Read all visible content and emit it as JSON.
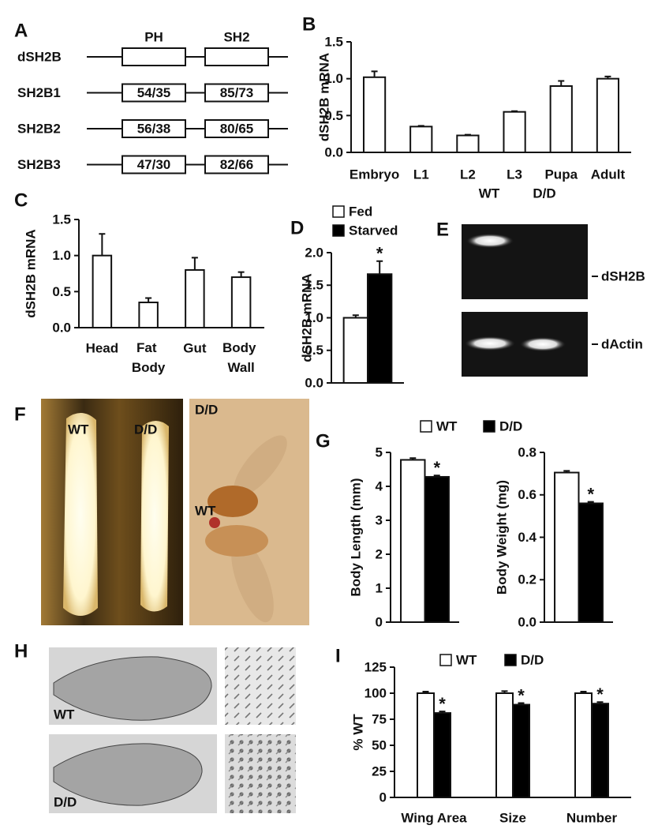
{
  "diagram": {
    "panel": "A",
    "domains": [
      "PH",
      "SH2"
    ],
    "rows": [
      {
        "name": "dSH2B"
      },
      {
        "name": "SH2B1",
        "identities": [
          "54/35",
          "85/73"
        ]
      },
      {
        "name": "SH2B2",
        "identities": [
          "56/38",
          "80/65"
        ]
      },
      {
        "name": "SH2B3",
        "identities": [
          "47/30",
          "82/66"
        ]
      }
    ]
  },
  "chart_data": [
    {
      "type": "bar",
      "panel": "B",
      "ylabel": "dSH2B mRNA",
      "categories": [
        "Embryo",
        "L1",
        "L2",
        "L3",
        "Pupa",
        "Adult"
      ],
      "series": [
        {
          "color": "#ffffff",
          "values": [
            1.02,
            0.35,
            0.23,
            0.55,
            0.9,
            1.0
          ],
          "errors": [
            0.08,
            0.01,
            0.01,
            0.01,
            0.07,
            0.03
          ]
        }
      ],
      "ylim": [
        0,
        1.5
      ],
      "yticks": [
        {
          "value": 0,
          "label": "0.0"
        },
        0.5,
        {
          "value": 1,
          "label": "1.0"
        },
        1.5
      ]
    },
    {
      "type": "bar",
      "panel": "C",
      "ylabel": "dSH2B mRNA",
      "categories": [
        "Head",
        "Fat Body",
        "Gut",
        "Body Wall"
      ],
      "wrap_labels": true,
      "series": [
        {
          "color": "#ffffff",
          "values": [
            1.0,
            0.35,
            0.8,
            0.7
          ],
          "errors": [
            0.3,
            0.06,
            0.17,
            0.07
          ]
        }
      ],
      "ylim": [
        0,
        1.5
      ],
      "yticks": [
        {
          "value": 0,
          "label": "0.0"
        },
        0.5,
        {
          "value": 1,
          "label": "1.0"
        },
        1.5
      ]
    },
    {
      "type": "bar",
      "panel": "D",
      "ylabel": "dSH2B mRNA",
      "series": [
        {
          "name": "Fed",
          "color": "#ffffff",
          "values": [
            1.0
          ],
          "errors": [
            0.04
          ]
        },
        {
          "name": "Starved",
          "color": "#000000",
          "values": [
            1.67
          ],
          "errors": [
            0.2
          ],
          "annotations": [
            "*"
          ]
        }
      ],
      "ylim": [
        0,
        2
      ],
      "yticks": [
        {
          "value": 0,
          "label": "0.0"
        },
        0.5,
        {
          "value": 1,
          "label": "1.0"
        },
        1.5,
        {
          "value": 2,
          "label": "2.0"
        }
      ]
    },
    {
      "type": "bar",
      "panel": "G",
      "series": [
        {
          "name": "WT",
          "color": "#ffffff",
          "values": [
            4.78,
            0.705
          ],
          "errors": [
            0.05,
            0.008
          ]
        },
        {
          "name": "D/D",
          "color": "#000000",
          "values": [
            4.28,
            0.56
          ],
          "errors": [
            0.04,
            0.007
          ],
          "annotations": [
            "*",
            "*"
          ]
        }
      ],
      "subplots": [
        {
          "ylabel": "Body Length (mm)",
          "ylim": [
            0,
            5
          ],
          "yticks": [
            0,
            1,
            2,
            3,
            4,
            5
          ]
        },
        {
          "ylabel": "Body Weight (mg)",
          "ylim": [
            0,
            0.8
          ],
          "yticks": [
            {
              "value": 0,
              "label": "0.0"
            },
            0.2,
            0.4,
            0.6,
            0.8
          ]
        }
      ]
    },
    {
      "type": "bar",
      "panel": "I",
      "ylabel": "% WT",
      "categories": [
        "Wing Area",
        "Size",
        "Number"
      ],
      "series": [
        {
          "name": "WT",
          "color": "#ffffff",
          "values": [
            100,
            100,
            100
          ],
          "errors": [
            1.5,
            2,
            1.5
          ]
        },
        {
          "name": "D/D",
          "color": "#000000",
          "values": [
            81,
            89,
            90
          ],
          "errors": [
            1.5,
            1.5,
            1.5
          ],
          "annotations": [
            "*",
            "*",
            "*"
          ]
        }
      ],
      "ylim": [
        0,
        125
      ],
      "yticks": [
        0,
        25,
        50,
        75,
        100,
        125
      ]
    }
  ],
  "gel": {
    "panel": "E",
    "lanes": [
      "WT",
      "D/D"
    ],
    "bands": [
      "dSH2B",
      "dActin"
    ]
  },
  "photo_f": {
    "panel": "F",
    "larva_labels": [
      "WT",
      "D/D"
    ],
    "fly_labels": [
      "D/D",
      "WT"
    ]
  },
  "photo_h": {
    "panel": "H",
    "labels": [
      "WT",
      "D/D"
    ]
  }
}
